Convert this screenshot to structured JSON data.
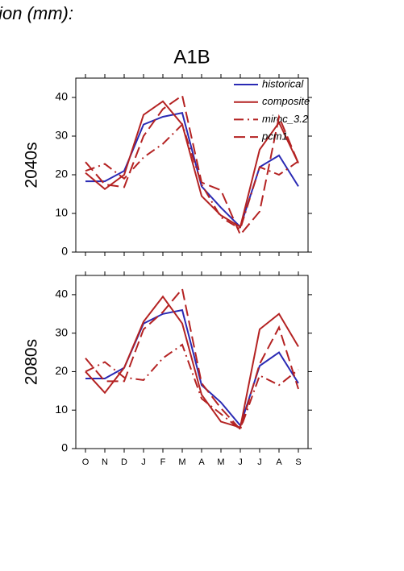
{
  "header": "tion (mm):",
  "chart_data": [
    {
      "type": "line",
      "title": "A1B",
      "ylabel": "2040s",
      "ylim": [
        0,
        45
      ],
      "yticks": [
        0,
        10,
        20,
        30,
        40
      ],
      "legend": "upper right",
      "series": [
        {
          "name": "historical",
          "color": "#2a2ab4",
          "dash": "solid",
          "values": [
            18.3,
            18.3,
            21,
            33,
            35,
            36,
            17,
            11.5,
            6.5,
            22,
            25,
            17
          ]
        },
        {
          "name": "composite",
          "color": "#b42222",
          "dash": "solid",
          "values": [
            20.5,
            16.3,
            20,
            35.5,
            39,
            33,
            14.5,
            9.5,
            6.5,
            26.5,
            33.5,
            23
          ]
        },
        {
          "name": "miroc_3.2",
          "color": "#b42222",
          "dash": "dashdot",
          "values": [
            21,
            22.8,
            19,
            24.5,
            28,
            33,
            17.5,
            9,
            6,
            22,
            20,
            23.5
          ]
        },
        {
          "name": "pcm1",
          "color": "#b42222",
          "dash": "dash",
          "values": [
            23.3,
            17.5,
            16.8,
            30,
            37,
            40.5,
            18,
            16,
            4.5,
            10.5,
            35,
            23
          ]
        }
      ]
    },
    {
      "type": "line",
      "ylabel": "2080s",
      "ylim": [
        0,
        45
      ],
      "yticks": [
        0,
        10,
        20,
        30,
        40
      ],
      "categories": [
        "O",
        "N",
        "D",
        "J",
        "F",
        "M",
        "A",
        "M",
        "J",
        "J",
        "A",
        "S"
      ],
      "series": [
        {
          "color": "#2a2ab4",
          "dash": "solid",
          "values": [
            18.2,
            18.2,
            21,
            32.5,
            35,
            36,
            16.5,
            12,
            6,
            21.5,
            25,
            17
          ]
        },
        {
          "color": "#b42222",
          "dash": "solid",
          "values": [
            20,
            14.5,
            21,
            33,
            39.5,
            32.5,
            14,
            7,
            5.5,
            31,
            35,
            26.5
          ]
        },
        {
          "color": "#b42222",
          "dash": "dashdot",
          "values": [
            20,
            22.5,
            18.5,
            17.8,
            23.5,
            27,
            13,
            9,
            5,
            19,
            16.5,
            20.5
          ]
        },
        {
          "color": "#b42222",
          "dash": "dash",
          "values": [
            23.5,
            17.5,
            17.5,
            31,
            35.5,
            41.5,
            17,
            10.5,
            5,
            22,
            31.5,
            15.5
          ]
        }
      ]
    }
  ]
}
